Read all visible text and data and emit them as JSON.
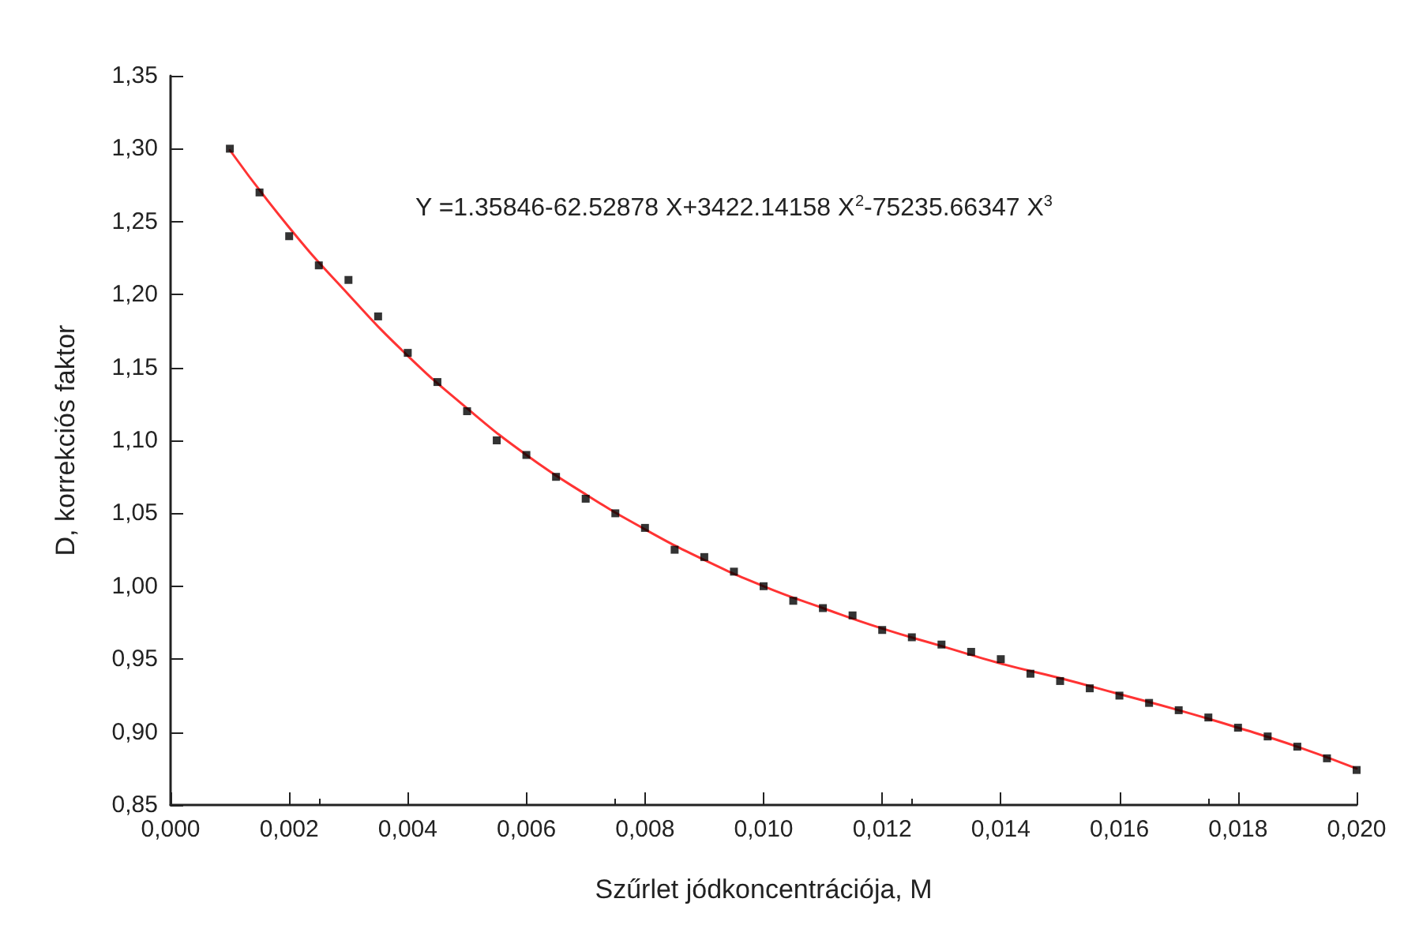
{
  "chart_data": {
    "type": "scatter",
    "xlabel": "Szűrlet jódkoncentrációja, M",
    "ylabel": "D, korrekciós faktor",
    "annotations": [
      "Y =1.35846-62.52878 X+3422.14158 X$^{2}$-75235.66347 X$^{3}$"
    ],
    "grid": false,
    "marker": "square",
    "xlim": [
      0,
      0.02
    ],
    "ylim": [
      0.85,
      1.35
    ],
    "xticks": [
      {
        "value": 0,
        "label": "0,000"
      },
      {
        "value": 0.002,
        "label": "0,002"
      },
      {
        "value": 0.004,
        "label": "0,004"
      },
      {
        "value": 0.006,
        "label": "0,006"
      },
      {
        "value": 0.008,
        "label": "0,008"
      },
      {
        "value": 0.01,
        "label": "0,010"
      },
      {
        "value": 0.012,
        "label": "0,012"
      },
      {
        "value": 0.014,
        "label": "0,014"
      },
      {
        "value": 0.016,
        "label": "0,016"
      },
      {
        "value": 0.018,
        "label": "0,018"
      },
      {
        "value": 0.02,
        "label": "0,020"
      }
    ],
    "yticks": [
      {
        "value": 0.85,
        "label": "0,85"
      },
      {
        "value": 0.9,
        "label": "0,90"
      },
      {
        "value": 0.95,
        "label": "0,95"
      },
      {
        "value": 1.0,
        "label": "1,00"
      },
      {
        "value": 1.05,
        "label": "1,05"
      },
      {
        "value": 1.1,
        "label": "1,10"
      },
      {
        "value": 1.15,
        "label": "1,15"
      },
      {
        "value": 1.2,
        "label": "1,20"
      },
      {
        "value": 1.25,
        "label": "1,25"
      },
      {
        "value": 1.3,
        "label": "1,30"
      },
      {
        "value": 1.35,
        "label": "1,35"
      }
    ],
    "series": [
      {
        "color": "#000000",
        "x": [
          0.001,
          0.0015,
          0.002,
          0.0025,
          0.003,
          0.0035,
          0.004,
          0.0045,
          0.005,
          0.0055,
          0.006,
          0.0065,
          0.007,
          0.0075,
          0.008,
          0.0085,
          0.009,
          0.0095,
          0.01,
          0.0105,
          0.011,
          0.0115,
          0.012,
          0.0125,
          0.013,
          0.0135,
          0.014,
          0.0145,
          0.015,
          0.0155,
          0.016,
          0.0165,
          0.017,
          0.0175,
          0.018,
          0.0185,
          0.019,
          0.0195,
          0.02
        ],
        "values": [
          1.3,
          1.27,
          1.24,
          1.22,
          1.21,
          1.185,
          1.16,
          1.14,
          1.12,
          1.1,
          1.09,
          1.075,
          1.06,
          1.05,
          1.04,
          1.025,
          1.02,
          1.01,
          1.0,
          0.99,
          0.985,
          0.98,
          0.97,
          0.965,
          0.96,
          0.955,
          0.95,
          0.94,
          0.935,
          0.93,
          0.925,
          0.92,
          0.915,
          0.91,
          0.903,
          0.897,
          0.89,
          0.882,
          0.874
        ]
      },
      {
        "type": "line",
        "color": "#ff3333",
        "marker": "none",
        "line_style": "solid",
        "x": [
          0.001,
          0.002,
          0.003,
          0.004,
          0.005,
          0.006,
          0.007,
          0.008,
          0.009,
          0.01,
          0.011,
          0.012,
          0.013,
          0.014,
          0.015,
          0.016,
          0.017,
          0.018,
          0.019,
          0.02
        ],
        "values": [
          1.299,
          1.246,
          1.2,
          1.158,
          1.122,
          1.09,
          1.063,
          1.039,
          1.018,
          1.0,
          0.985,
          0.971,
          0.959,
          0.947,
          0.937,
          0.926,
          0.915,
          0.903,
          0.89,
          0.875
        ]
      }
    ]
  }
}
